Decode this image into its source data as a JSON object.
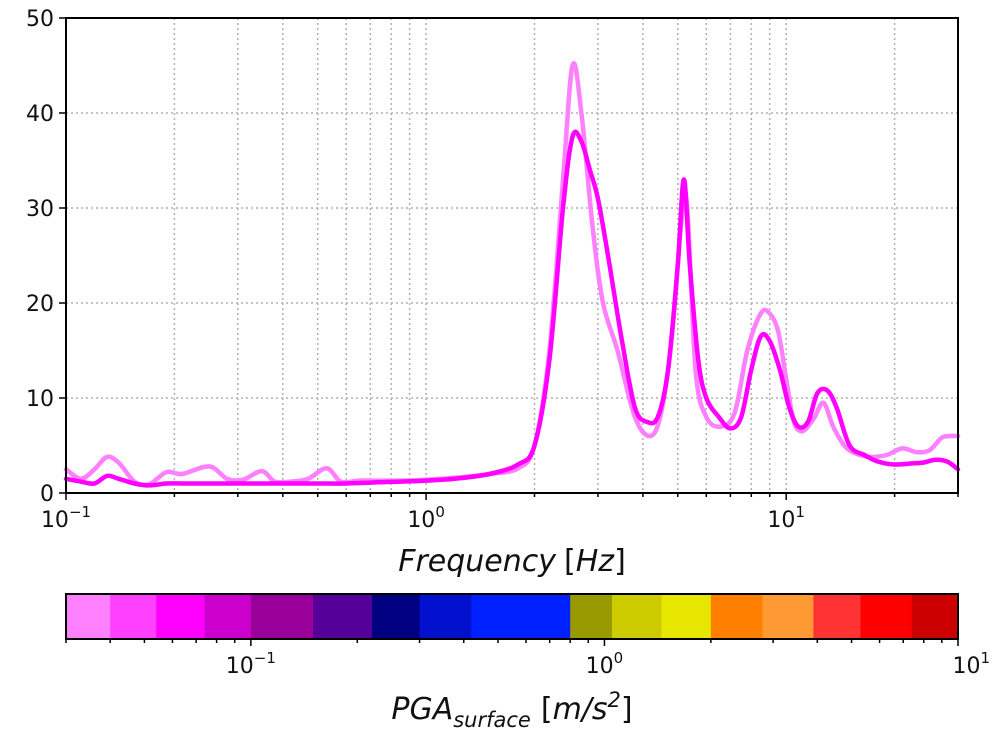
{
  "chart_data": {
    "type": "line",
    "title": "",
    "xlabel": "Frequency",
    "xlabel_unit": "[Hz]",
    "ylabel": "",
    "xscale": "log",
    "xlim": [
      0.1,
      30
    ],
    "ylim": [
      0,
      50
    ],
    "grid": true,
    "x_ticks": [
      {
        "value": 0.1,
        "base": "10",
        "exp": "−1"
      },
      {
        "value": 1,
        "base": "10",
        "exp": "0"
      },
      {
        "value": 10,
        "base": "10",
        "exp": "1"
      }
    ],
    "y_ticks": [
      {
        "value": 0,
        "label": "0"
      },
      {
        "value": 10,
        "label": "10"
      },
      {
        "value": 20,
        "label": "20"
      },
      {
        "value": 30,
        "label": "30"
      },
      {
        "value": 40,
        "label": "40"
      },
      {
        "value": 50,
        "label": "50"
      }
    ],
    "series": [
      {
        "color": "#ff80ff",
        "width": 4.5,
        "x": [
          0.1,
          0.11,
          0.12,
          0.13,
          0.14,
          0.155,
          0.17,
          0.19,
          0.21,
          0.25,
          0.28,
          0.31,
          0.35,
          0.38,
          0.42,
          0.47,
          0.53,
          0.58,
          0.65,
          0.75,
          0.85,
          1.0,
          1.2,
          1.5,
          1.8,
          2.0,
          2.2,
          2.4,
          2.55,
          2.7,
          2.9,
          3.1,
          3.4,
          3.8,
          4.2,
          4.5,
          4.8,
          5.1,
          5.3,
          5.6,
          6.0,
          6.6,
          7.2,
          7.8,
          8.5,
          9.0,
          9.5,
          10.0,
          10.5,
          11.0,
          11.5,
          12.0,
          12.7,
          13.5,
          14.5,
          15.5,
          17.0,
          19.0,
          21.0,
          23.0,
          25.0,
          27.0,
          28.5,
          30.0
        ],
        "values": [
          2.5,
          1.5,
          2.5,
          3.8,
          3.2,
          1.2,
          0.9,
          2.2,
          2.0,
          2.8,
          1.5,
          1.4,
          2.3,
          1.2,
          1.2,
          1.5,
          2.6,
          1.2,
          1.3,
          1.3,
          1.3,
          1.4,
          1.6,
          2.0,
          2.6,
          5.0,
          15.0,
          33.0,
          45.0,
          40.0,
          28.0,
          20.0,
          15.0,
          8.0,
          6.0,
          8.5,
          16.0,
          28.0,
          30.5,
          13.0,
          8.0,
          7.0,
          8.5,
          15.0,
          18.9,
          18.9,
          17.0,
          12.0,
          7.5,
          6.5,
          7.0,
          8.0,
          9.5,
          7.0,
          5.0,
          4.2,
          3.8,
          4.0,
          4.7,
          4.3,
          4.5,
          5.8,
          6.0,
          6.0
        ]
      },
      {
        "color": "#ff00ff",
        "width": 4.5,
        "x": [
          0.1,
          0.11,
          0.12,
          0.13,
          0.14,
          0.155,
          0.17,
          0.19,
          0.21,
          0.25,
          0.3,
          0.4,
          0.5,
          0.6,
          0.7,
          0.85,
          1.0,
          1.2,
          1.5,
          1.8,
          2.0,
          2.2,
          2.4,
          2.55,
          2.7,
          2.85,
          3.0,
          3.2,
          3.5,
          3.8,
          4.1,
          4.4,
          4.7,
          5.0,
          5.2,
          5.4,
          5.7,
          6.0,
          6.5,
          7.0,
          7.5,
          8.0,
          8.5,
          9.0,
          9.6,
          10.2,
          10.8,
          11.5,
          12.2,
          13.0,
          13.8,
          15.0,
          16.5,
          18.0,
          20.0,
          22.0,
          24.0,
          26.0,
          28.0,
          30.0
        ],
        "values": [
          1.5,
          1.2,
          1.0,
          1.8,
          1.5,
          1.0,
          0.8,
          1.0,
          1.0,
          1.0,
          1.0,
          1.0,
          1.0,
          1.0,
          1.1,
          1.2,
          1.3,
          1.5,
          2.0,
          3.0,
          5.0,
          14.0,
          30.0,
          37.5,
          37.0,
          34.0,
          31.0,
          25.0,
          16.0,
          9.0,
          7.5,
          8.0,
          13.0,
          24.0,
          33.0,
          24.0,
          14.0,
          10.0,
          8.0,
          6.8,
          8.0,
          13.0,
          16.5,
          16.0,
          13.0,
          9.0,
          7.0,
          7.5,
          10.5,
          10.8,
          9.0,
          5.0,
          4.0,
          3.3,
          3.0,
          3.1,
          3.2,
          3.5,
          3.3,
          2.5
        ]
      }
    ]
  },
  "colorbar": {
    "label_main": "PGA",
    "label_sub": "surface",
    "label_unit_open": "[m/s",
    "label_unit_exp": "2",
    "label_unit_close": "]",
    "scale": "log",
    "range": [
      0.03,
      10
    ],
    "bins": [
      0.03,
      0.04,
      0.054,
      0.074,
      0.1,
      0.15,
      0.22,
      0.3,
      0.42,
      0.8,
      1.05,
      1.45,
      2.0,
      2.8,
      3.9,
      5.3,
      7.4,
      10
    ],
    "colors": [
      "#ff80ff",
      "#ff40ff",
      "#ff00ff",
      "#cc00cc",
      "#990099",
      "#550099",
      "#000080",
      "#0010cc",
      "#0020ff",
      "#999900",
      "#cccc00",
      "#e6e600",
      "#ff8000",
      "#ff9933",
      "#ff3333",
      "#ff0000",
      "#cc0000"
    ],
    "ticks": [
      {
        "value": 0.1,
        "base": "10",
        "exp": "−1"
      },
      {
        "value": 1,
        "base": "10",
        "exp": "0"
      },
      {
        "value": 10,
        "base": "10",
        "exp": "1"
      }
    ]
  }
}
